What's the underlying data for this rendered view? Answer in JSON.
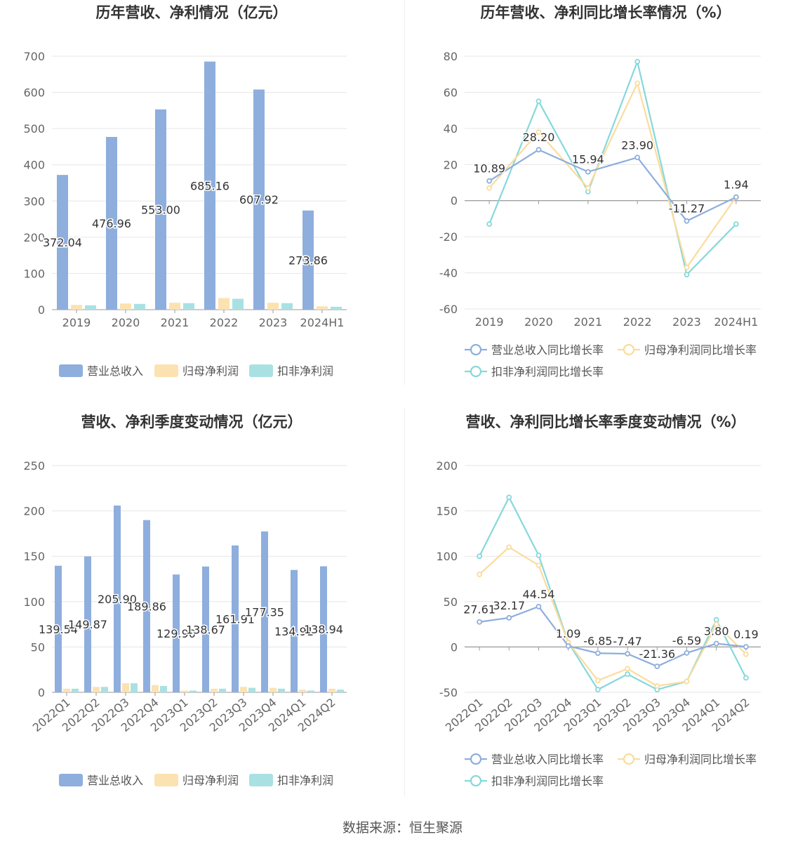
{
  "colors": {
    "revenue": "#8eaedd",
    "net_profit": "#fbe2b0",
    "deducted_profit": "#a9e1e3",
    "revenue_line": "#8eaedd",
    "net_profit_line": "#fbdc9c",
    "deducted_profit_line": "#86d8db"
  },
  "legend": {
    "bar": [
      "营业总收入",
      "归母净利润",
      "扣非净利润"
    ],
    "line": [
      "营业总收入同比增长率",
      "归母净利润同比增长率",
      "扣非净利润同比增长率"
    ]
  },
  "source": "数据来源：恒生聚源",
  "chart_data": [
    {
      "type": "bar",
      "title": "历年营收、净利情况（亿元）",
      "categories": [
        "2019",
        "2020",
        "2021",
        "2022",
        "2023",
        "2024H1"
      ],
      "ylim": [
        0,
        700
      ],
      "yticks": [
        0,
        100,
        200,
        300,
        400,
        500,
        600,
        700
      ],
      "series": [
        {
          "name": "营业总收入",
          "values": [
            372.04,
            476.96,
            553.0,
            685.16,
            607.92,
            273.86
          ],
          "labels": [
            "372.04",
            "476.96",
            "553.00",
            "685.16",
            "607.92",
            "273.86"
          ]
        },
        {
          "name": "归母净利润",
          "values": [
            13,
            17,
            19,
            32,
            19,
            9
          ]
        },
        {
          "name": "扣非净利润",
          "values": [
            12,
            16,
            18,
            30,
            18,
            8
          ]
        }
      ],
      "legend_position": "bottom"
    },
    {
      "type": "line",
      "title": "历年营收、净利同比增长率情况（%）",
      "categories": [
        "2019",
        "2020",
        "2021",
        "2022",
        "2023",
        "2024H1"
      ],
      "ylim": [
        -60,
        80
      ],
      "yticks": [
        -60,
        -40,
        -20,
        0,
        20,
        40,
        60,
        80
      ],
      "series": [
        {
          "name": "营业总收入同比增长率",
          "values": [
            10.89,
            28.2,
            15.94,
            23.9,
            -11.27,
            1.94
          ],
          "labels": [
            "10.89",
            "28.20",
            "15.94",
            "23.90",
            "-11.27",
            "1.94"
          ]
        },
        {
          "name": "归母净利润同比增长率",
          "values": [
            7,
            38,
            7,
            65,
            -37,
            2
          ]
        },
        {
          "name": "扣非净利润同比增长率",
          "values": [
            -13,
            55,
            5,
            77,
            -41,
            -13
          ]
        }
      ],
      "legend_position": "bottom"
    },
    {
      "type": "bar",
      "title": "营收、净利季度变动情况（亿元）",
      "categories": [
        "2022Q1",
        "2022Q2",
        "2022Q3",
        "2022Q4",
        "2023Q1",
        "2023Q2",
        "2023Q3",
        "2023Q4",
        "2024Q1",
        "2024Q2"
      ],
      "ylim": [
        0,
        250
      ],
      "yticks": [
        0,
        50,
        100,
        150,
        200,
        250
      ],
      "series": [
        {
          "name": "营业总收入",
          "values": [
            139.54,
            149.87,
            205.9,
            189.86,
            129.9,
            138.67,
            161.91,
            177.35,
            134.91,
            138.94
          ],
          "labels": [
            "139.54",
            "149.87",
            "205.90",
            "189.86",
            "129.90",
            "138.67",
            "161.91",
            "177.35",
            "134.91",
            "138.94"
          ]
        },
        {
          "name": "归母净利润",
          "values": [
            4,
            6,
            10,
            8,
            2,
            4,
            6,
            5,
            3,
            4
          ]
        },
        {
          "name": "扣非净利润",
          "values": [
            4,
            6,
            10,
            7,
            2,
            4,
            5,
            4,
            2,
            3
          ]
        }
      ],
      "legend_position": "bottom"
    },
    {
      "type": "line",
      "title": "营收、净利同比增长率季度变动情况（%）",
      "categories": [
        "2022Q1",
        "2022Q2",
        "2022Q3",
        "2022Q4",
        "2023Q1",
        "2023Q2",
        "2023Q3",
        "2023Q4",
        "2024Q1",
        "2024Q2"
      ],
      "ylim": [
        -50,
        200
      ],
      "yticks": [
        -50,
        0,
        50,
        100,
        150,
        200
      ],
      "series": [
        {
          "name": "营业总收入同比增长率",
          "values": [
            27.61,
            32.17,
            44.54,
            1.09,
            -6.85,
            -7.47,
            -21.36,
            -6.59,
            3.8,
            0.19
          ],
          "labels": [
            "27.61",
            "32.17",
            "44.54",
            "1.09",
            "-6.85",
            "-7.47",
            "-21.36",
            "-6.59",
            "3.80",
            "0.19"
          ]
        },
        {
          "name": "归母净利润同比增长率",
          "values": [
            80,
            110,
            90,
            5,
            -37,
            -24,
            -43,
            -38,
            25,
            -8
          ]
        },
        {
          "name": "扣非净利润同比增长率",
          "values": [
            100,
            165,
            101,
            5,
            -47,
            -30,
            -47,
            -38,
            30,
            -34
          ]
        }
      ],
      "legend_position": "bottom"
    }
  ]
}
